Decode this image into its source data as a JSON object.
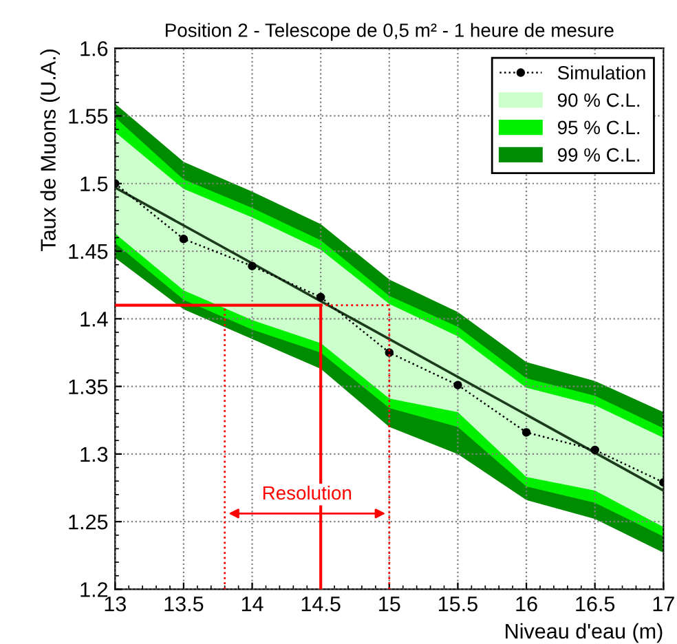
{
  "chart_data": {
    "type": "line",
    "title": "Position 2 - Telescope de 0,5 m² - 1 heure de mesure",
    "xlabel": "Niveau d'eau (m)",
    "ylabel": "Taux de Muons (U.A.)",
    "xlim": [
      13,
      17
    ],
    "ylim": [
      1.2,
      1.6
    ],
    "xticks": [
      13,
      13.5,
      14,
      14.5,
      15,
      15.5,
      16,
      16.5,
      17
    ],
    "yticks": [
      1.2,
      1.25,
      1.3,
      1.35,
      1.4,
      1.45,
      1.5,
      1.55,
      1.6
    ],
    "grid": true,
    "legend": "top right",
    "series": [
      {
        "name": "99 % C.L.",
        "type": "area",
        "color": "#008c00",
        "x": [
          13,
          13.5,
          14,
          14.5,
          15,
          15.5,
          16,
          16.5,
          17
        ],
        "values": [
          null,
          null,
          null,
          null,
          null,
          null,
          null,
          null,
          null
        ],
        "lower": [
          1.445,
          1.407,
          1.385,
          1.363,
          1.32,
          1.3,
          1.266,
          1.252,
          1.227
        ],
        "upper": [
          1.559,
          1.516,
          1.494,
          1.47,
          1.429,
          1.405,
          1.368,
          1.354,
          1.331
        ]
      },
      {
        "name": "95 % C.L.",
        "type": "area",
        "color": "#00f000",
        "x": [
          13,
          13.5,
          14,
          14.5,
          15,
          15.5,
          16,
          16.5,
          17
        ],
        "values": [
          null,
          null,
          null,
          null,
          null,
          null,
          null,
          null,
          null
        ],
        "lower": [
          1.456,
          1.414,
          1.392,
          1.375,
          1.334,
          1.32,
          1.276,
          1.264,
          1.239
        ],
        "upper": [
          1.549,
          1.503,
          1.482,
          1.458,
          1.417,
          1.394,
          1.356,
          1.343,
          1.319
        ]
      },
      {
        "name": "90 % C.L.",
        "type": "area",
        "color": "#ccffcc",
        "x": [
          13,
          13.5,
          14,
          14.5,
          15,
          15.5,
          16,
          16.5,
          17
        ],
        "values": [
          null,
          null,
          null,
          null,
          null,
          null,
          null,
          null,
          null
        ],
        "lower": [
          1.463,
          1.421,
          1.399,
          1.382,
          1.341,
          1.331,
          1.283,
          1.273,
          1.246
        ],
        "upper": [
          1.538,
          1.496,
          1.475,
          1.451,
          1.411,
          1.387,
          1.349,
          1.336,
          1.312
        ]
      },
      {
        "color": "#1c3a1c",
        "line_style": "solid",
        "marker": "none",
        "x": [
          13,
          17
        ],
        "values": [
          1.497,
          1.273
        ]
      },
      {
        "name": "Simulation",
        "color": "#000000",
        "line_style": "dotted",
        "marker": "circle",
        "x": [
          13,
          13.5,
          14,
          14.5,
          15,
          15.5,
          16,
          16.5,
          17
        ],
        "values": [
          1.5,
          1.459,
          1.439,
          1.416,
          1.375,
          1.351,
          1.316,
          1.303,
          1.279
        ]
      }
    ],
    "ref_lines": [
      {
        "axis": "y",
        "value": 1.41,
        "color": "#ff0000",
        "line_style": "solid"
      },
      {
        "axis": "y",
        "value": 1.41,
        "color": "#ff0000",
        "line_style": "dotted"
      },
      {
        "axis": "x",
        "value": 14.5,
        "color": "#ff0000",
        "line_style": "solid"
      },
      {
        "axis": "x",
        "value": 13.8,
        "color": "#ff0000",
        "line_style": "dotted"
      },
      {
        "axis": "x",
        "value": 15,
        "color": "#ff0000",
        "line_style": "dotted"
      }
    ],
    "annotations": [
      "Resolution"
    ]
  }
}
